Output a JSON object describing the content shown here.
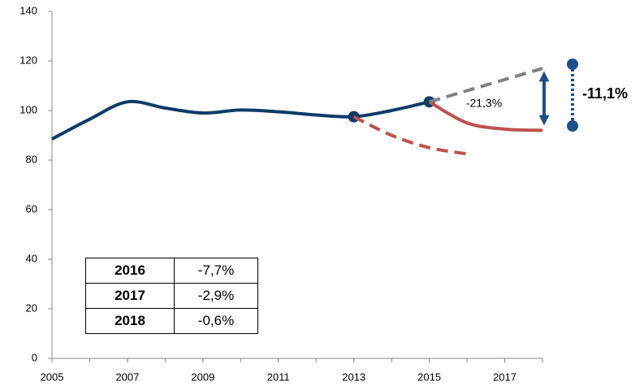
{
  "chart_data": {
    "type": "line",
    "xlim": [
      2005,
      2018
    ],
    "xticks": [
      2005,
      2007,
      2009,
      2011,
      2013,
      2015,
      2017
    ],
    "ylim": [
      0,
      140
    ],
    "yticks": [
      0,
      20,
      40,
      60,
      80,
      100,
      120,
      140
    ],
    "grid": false,
    "series": [
      {
        "color": "#0e3b67",
        "dash": false,
        "x": [
          2005,
          2006,
          2007,
          2008,
          2009,
          2010,
          2011,
          2012,
          2013,
          2014,
          2015
        ],
        "values": [
          88.5,
          96.5,
          103.5,
          101,
          99,
          100.2,
          99.5,
          98.2,
          97.5,
          100,
          103.5
        ],
        "marker_x": [
          2013,
          2015
        ]
      },
      {
        "color": "#c0504d",
        "dash": true,
        "x": [
          2013,
          2014,
          2015,
          2016
        ],
        "values": [
          97.5,
          90,
          85,
          82.5
        ]
      },
      {
        "color": "#c0504d",
        "dash": false,
        "x": [
          2015,
          2016,
          2017,
          2018
        ],
        "values": [
          103.5,
          95,
          92.5,
          92
        ]
      },
      {
        "color": "#808080",
        "dash": true,
        "x": [
          2015,
          2018
        ],
        "values": [
          103.5,
          117
        ]
      }
    ],
    "annotations": [
      "-21,3%",
      "-11,1%"
    ],
    "table": [
      [
        "2016",
        "-7,7%"
      ],
      [
        "2017",
        "-2,9%"
      ],
      [
        "2018",
        "-0,6%"
      ]
    ]
  }
}
